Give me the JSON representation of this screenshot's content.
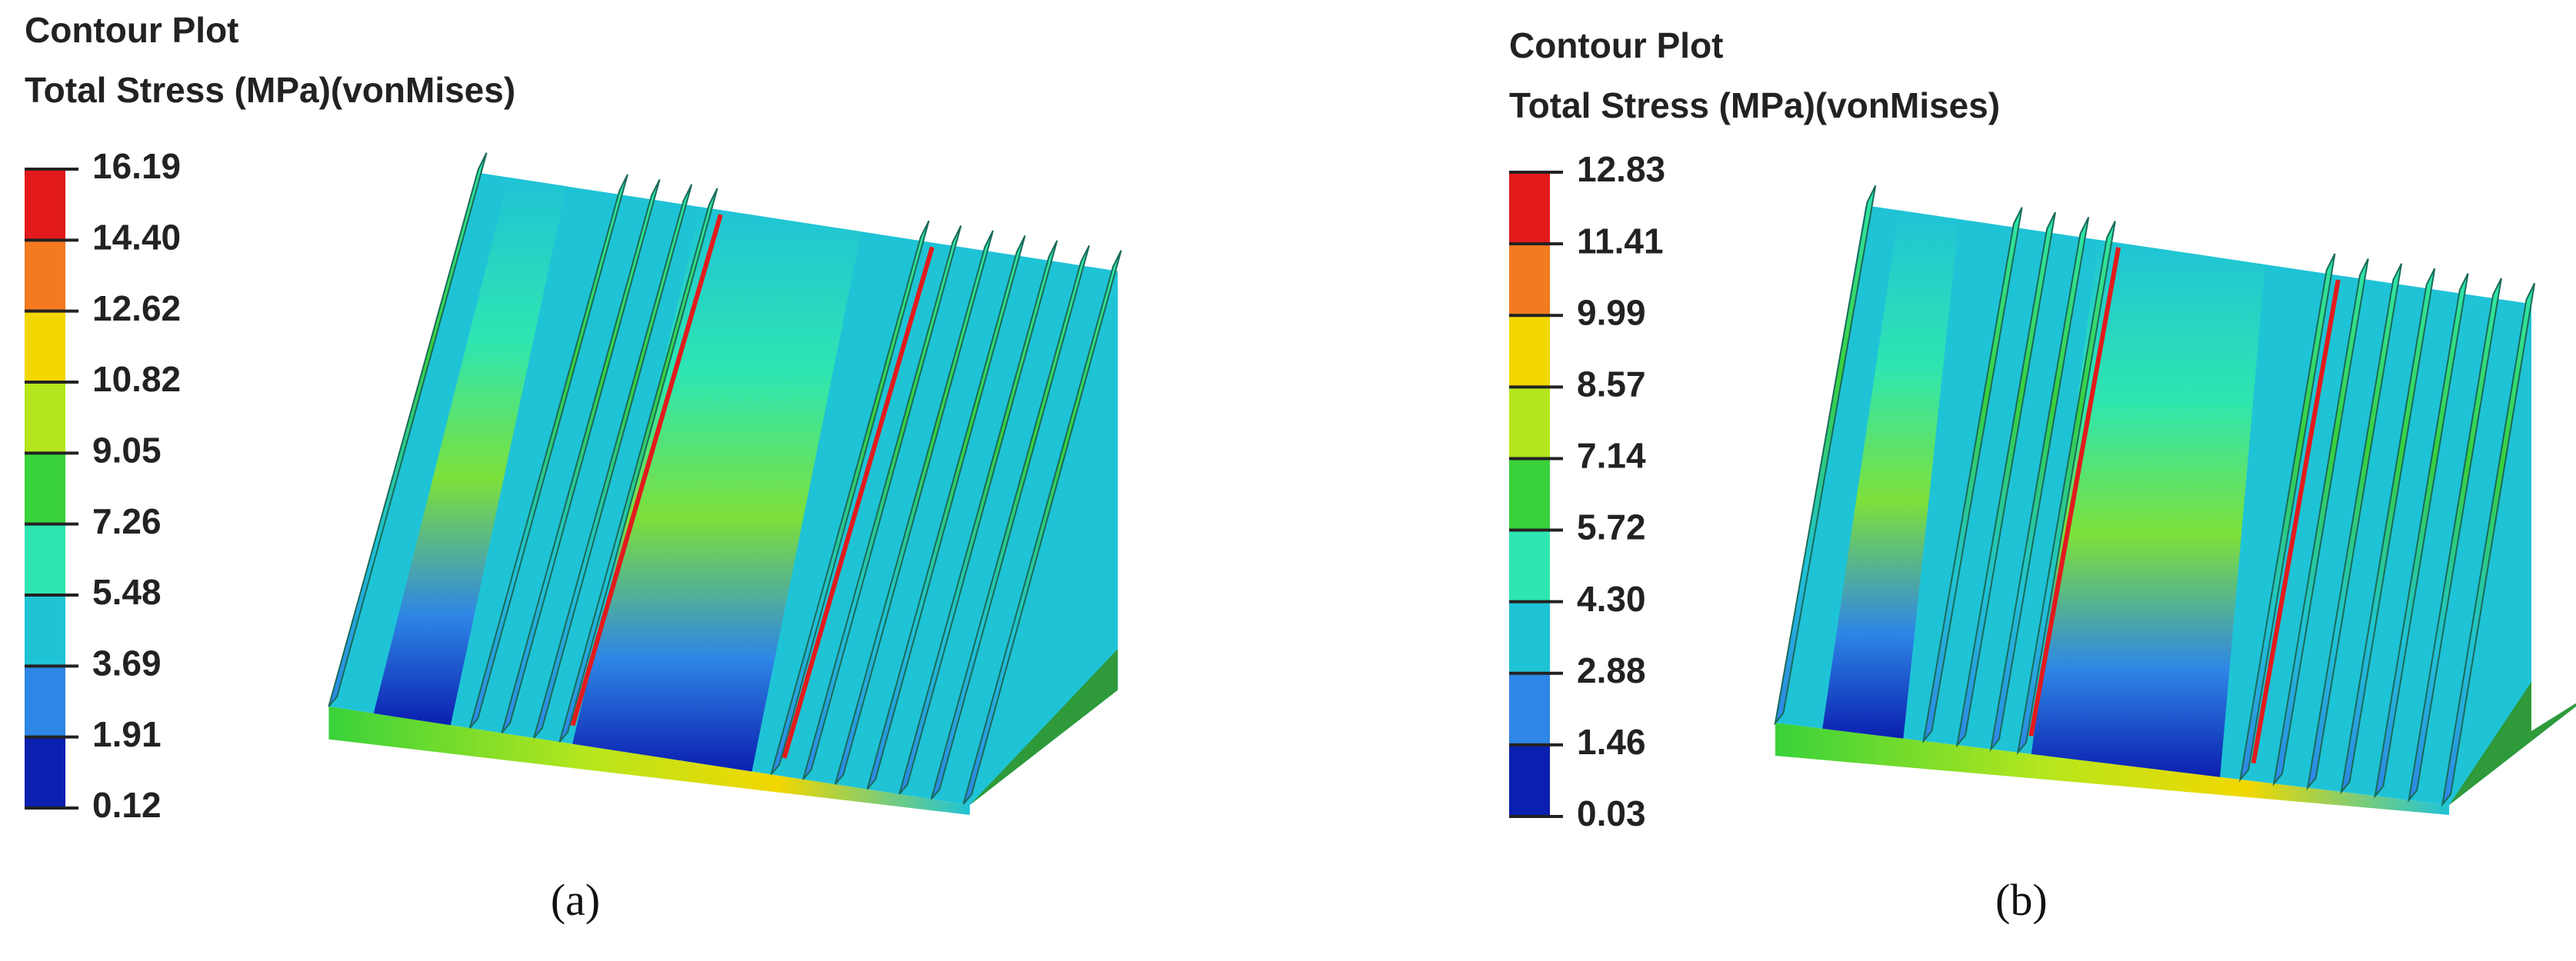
{
  "panels": [
    {
      "title": "Contour Plot",
      "subtitle": "Total Stress (MPa)(vonMises)",
      "legend": [
        "16.19",
        "14.40",
        "12.62",
        "10.82",
        "9.05",
        "7.26",
        "5.48",
        "3.69",
        "1.91",
        "0.12"
      ],
      "caption": "(a)"
    },
    {
      "title": "Contour Plot",
      "subtitle": "Total Stress (MPa)(vonMises)",
      "legend": [
        "12.83",
        "11.41",
        "9.99",
        "8.57",
        "7.14",
        "5.72",
        "4.30",
        "2.88",
        "1.46",
        "0.03"
      ],
      "caption": "(b)"
    }
  ]
}
